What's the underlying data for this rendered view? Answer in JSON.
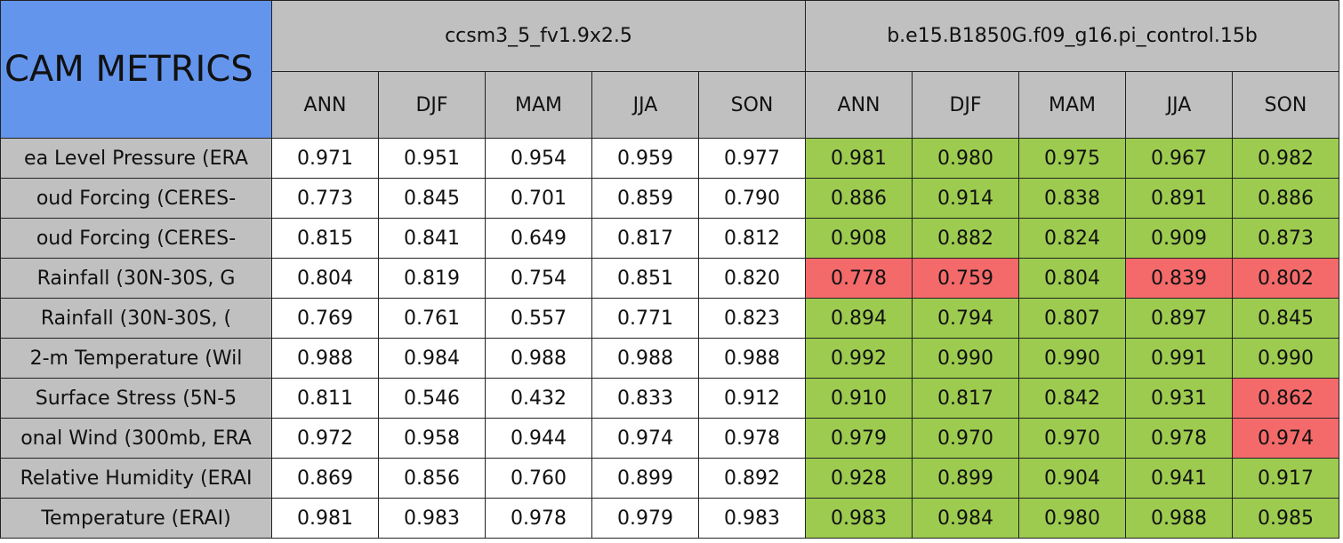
{
  "header": {
    "title": "CAM METRICS",
    "groups": [
      {
        "name": "ccsm3_5_fv1.9x2.5",
        "seasons": [
          "ANN",
          "DJF",
          "MAM",
          "JJA",
          "SON"
        ]
      },
      {
        "name": "b.e15.B1850G.f09_g16.pi_control.15b",
        "seasons": [
          "ANN",
          "DJF",
          "MAM",
          "JJA",
          "SON"
        ]
      }
    ],
    "title_color": "#6495ed",
    "header_color": "#c0c0c0"
  },
  "table": {
    "rows": [
      {
        "label": "ea Level Pressure (ERA",
        "values": [
          "0.971",
          "0.951",
          "0.954",
          "0.959",
          "0.977",
          "0.981",
          "0.980",
          "0.975",
          "0.967",
          "0.982"
        ],
        "colors": [
          "#ffffff",
          "#ffffff",
          "#ffffff",
          "#ffffff",
          "#ffffff",
          "#9dcb4f",
          "#9dcb4f",
          "#9dcb4f",
          "#9dcb4f",
          "#9dcb4f"
        ]
      },
      {
        "label": "oud Forcing (CERES-",
        "values": [
          "0.773",
          "0.845",
          "0.701",
          "0.859",
          "0.790",
          "0.886",
          "0.914",
          "0.838",
          "0.891",
          "0.886"
        ],
        "colors": [
          "#ffffff",
          "#ffffff",
          "#ffffff",
          "#ffffff",
          "#ffffff",
          "#9dcb4f",
          "#9dcb4f",
          "#9dcb4f",
          "#9dcb4f",
          "#9dcb4f"
        ]
      },
      {
        "label": "oud Forcing (CERES-",
        "values": [
          "0.815",
          "0.841",
          "0.649",
          "0.817",
          "0.812",
          "0.908",
          "0.882",
          "0.824",
          "0.909",
          "0.873"
        ],
        "colors": [
          "#ffffff",
          "#ffffff",
          "#ffffff",
          "#ffffff",
          "#ffffff",
          "#9dcb4f",
          "#9dcb4f",
          "#9dcb4f",
          "#9dcb4f",
          "#9dcb4f"
        ]
      },
      {
        "label": "Rainfall (30N-30S, G",
        "values": [
          "0.804",
          "0.819",
          "0.754",
          "0.851",
          "0.820",
          "0.778",
          "0.759",
          "0.804",
          "0.839",
          "0.802"
        ],
        "colors": [
          "#ffffff",
          "#ffffff",
          "#ffffff",
          "#ffffff",
          "#ffffff",
          "#f46a6a",
          "#f46a6a",
          "#9dcb4f",
          "#f46a6a",
          "#f46a6a"
        ]
      },
      {
        "label": "Rainfall (30N-30S, (",
        "values": [
          "0.769",
          "0.761",
          "0.557",
          "0.771",
          "0.823",
          "0.894",
          "0.794",
          "0.807",
          "0.897",
          "0.845"
        ],
        "colors": [
          "#ffffff",
          "#ffffff",
          "#ffffff",
          "#ffffff",
          "#ffffff",
          "#9dcb4f",
          "#9dcb4f",
          "#9dcb4f",
          "#9dcb4f",
          "#9dcb4f"
        ]
      },
      {
        "label": "2-m Temperature (Wil",
        "values": [
          "0.988",
          "0.984",
          "0.988",
          "0.988",
          "0.988",
          "0.992",
          "0.990",
          "0.990",
          "0.991",
          "0.990"
        ],
        "colors": [
          "#ffffff",
          "#ffffff",
          "#ffffff",
          "#ffffff",
          "#ffffff",
          "#9dcb4f",
          "#9dcb4f",
          "#9dcb4f",
          "#9dcb4f",
          "#9dcb4f"
        ]
      },
      {
        "label": "Surface Stress (5N-5",
        "values": [
          "0.811",
          "0.546",
          "0.432",
          "0.833",
          "0.912",
          "0.910",
          "0.817",
          "0.842",
          "0.931",
          "0.862"
        ],
        "colors": [
          "#ffffff",
          "#ffffff",
          "#ffffff",
          "#ffffff",
          "#ffffff",
          "#9dcb4f",
          "#9dcb4f",
          "#9dcb4f",
          "#9dcb4f",
          "#f46a6a"
        ]
      },
      {
        "label": "onal Wind (300mb, ERA",
        "values": [
          "0.972",
          "0.958",
          "0.944",
          "0.974",
          "0.978",
          "0.979",
          "0.970",
          "0.970",
          "0.978",
          "0.974"
        ],
        "colors": [
          "#ffffff",
          "#ffffff",
          "#ffffff",
          "#ffffff",
          "#ffffff",
          "#9dcb4f",
          "#9dcb4f",
          "#9dcb4f",
          "#9dcb4f",
          "#f46a6a"
        ]
      },
      {
        "label": "Relative Humidity (ERAI",
        "values": [
          "0.869",
          "0.856",
          "0.760",
          "0.899",
          "0.892",
          "0.928",
          "0.899",
          "0.904",
          "0.941",
          "0.917"
        ],
        "colors": [
          "#ffffff",
          "#ffffff",
          "#ffffff",
          "#ffffff",
          "#ffffff",
          "#9dcb4f",
          "#9dcb4f",
          "#9dcb4f",
          "#9dcb4f",
          "#9dcb4f"
        ]
      },
      {
        "label": "Temperature (ERAI)",
        "values": [
          "0.981",
          "0.983",
          "0.978",
          "0.979",
          "0.983",
          "0.983",
          "0.984",
          "0.980",
          "0.988",
          "0.985"
        ],
        "colors": [
          "#ffffff",
          "#ffffff",
          "#ffffff",
          "#ffffff",
          "#ffffff",
          "#9dcb4f",
          "#9dcb4f",
          "#9dcb4f",
          "#9dcb4f",
          "#9dcb4f"
        ]
      }
    ]
  }
}
